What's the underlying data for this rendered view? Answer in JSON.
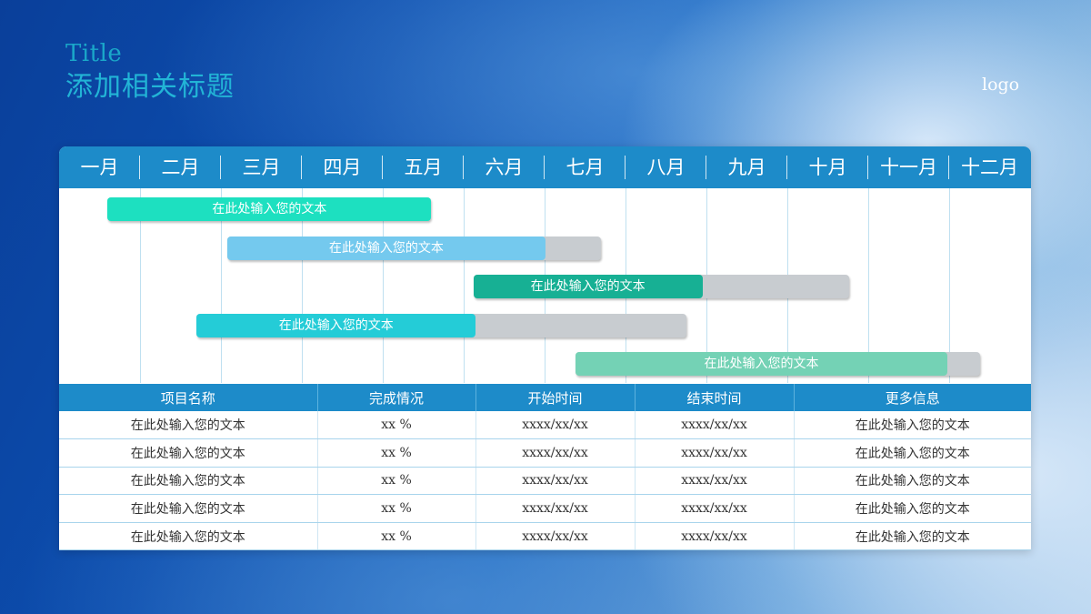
{
  "header": {
    "title_en": "Title",
    "title_cn": "添加相关标题",
    "logo": "logo"
  },
  "colors": {
    "header_bar": "#1d8bc9",
    "remaining": "#c8ccd0"
  },
  "chart_data": {
    "type": "gantt",
    "months": [
      "一月",
      "二月",
      "三月",
      "四月",
      "五月",
      "六月",
      "七月",
      "八月",
      "九月",
      "十月",
      "十一月",
      "十二月"
    ],
    "tasks": [
      {
        "label": "在此处输入您的文本",
        "start": 0.6,
        "end": 4.6,
        "progress": 1.0,
        "color": "#1de0c0"
      },
      {
        "label": "在此处输入您的文本",
        "start": 2.08,
        "end": 6.7,
        "progress": 0.85,
        "color": "#74c9ee"
      },
      {
        "label": "在此处输入您的文本",
        "start": 5.12,
        "end": 9.76,
        "progress": 0.61,
        "color": "#17b094"
      },
      {
        "label": "在此处输入您的文本",
        "start": 1.7,
        "end": 7.75,
        "progress": 0.57,
        "color": "#24ccd7"
      },
      {
        "label": "在此处输入您的文本",
        "start": 6.38,
        "end": 11.38,
        "progress": 0.92,
        "color": "#74d2b5"
      }
    ]
  },
  "table": {
    "columns": [
      "项目名称",
      "完成情况",
      "开始时间",
      "结束时间",
      "更多信息"
    ],
    "rows": [
      [
        "在此处输入您的文本",
        "xx %",
        "xxxx/xx/xx",
        "xxxx/xx/xx",
        "在此处输入您的文本"
      ],
      [
        "在此处输入您的文本",
        "xx %",
        "xxxx/xx/xx",
        "xxxx/xx/xx",
        "在此处输入您的文本"
      ],
      [
        "在此处输入您的文本",
        "xx %",
        "xxxx/xx/xx",
        "xxxx/xx/xx",
        "在此处输入您的文本"
      ],
      [
        "在此处输入您的文本",
        "xx %",
        "xxxx/xx/xx",
        "xxxx/xx/xx",
        "在此处输入您的文本"
      ],
      [
        "在此处输入您的文本",
        "xx %",
        "xxxx/xx/xx",
        "xxxx/xx/xx",
        "在此处输入您的文本"
      ]
    ]
  }
}
